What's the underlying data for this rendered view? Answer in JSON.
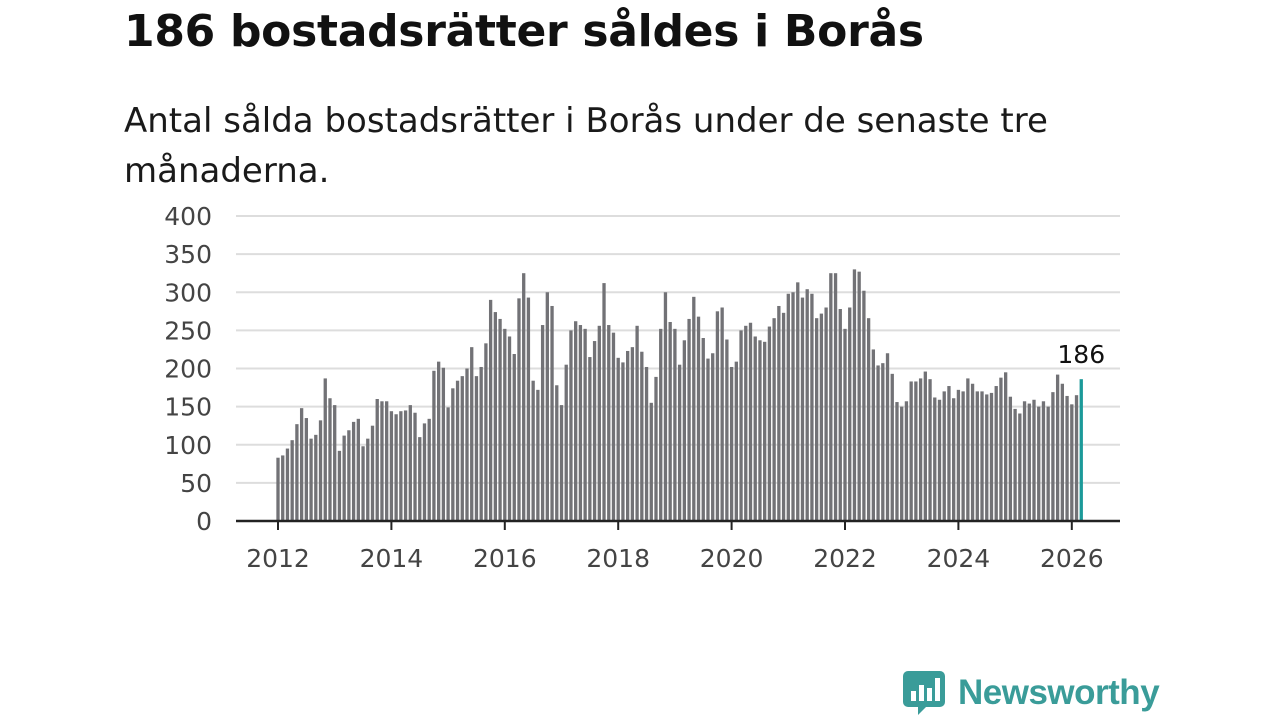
{
  "header": {
    "title": "186 bostadsrätter såldes i Borås",
    "subtitle": "Antal sålda bostadsrätter i Borås under de senaste tre månaderna."
  },
  "brand": {
    "name": "Newsworthy",
    "logo_icon": "bar-chart-speech-bubble-icon",
    "color": "#3a9c99"
  },
  "colors": {
    "bar": "#727276",
    "highlight": "#1b9a99",
    "grid": "#dddddd"
  },
  "chart_data": {
    "type": "bar",
    "title": "186 bostadsrätter såldes i Borås",
    "subtitle": "Antal sålda bostadsrätter i Borås under de senaste tre månaderna.",
    "xlabel": "",
    "ylabel": "",
    "ylim": [
      0,
      400
    ],
    "grid": true,
    "y_ticks": [
      "0",
      "50",
      "100",
      "150",
      "200",
      "250",
      "300",
      "350",
      "400"
    ],
    "x_ticks": [
      "2012",
      "2014",
      "2016",
      "2018",
      "2020",
      "2022",
      "2024",
      "2026"
    ],
    "x_tick_years": [
      2012,
      2014,
      2016,
      2018,
      2020,
      2022,
      2024,
      2026
    ],
    "start_year": 2012,
    "start_month": 1,
    "highlight_label": "186",
    "series": [
      {
        "name": "Antal sålda bostadsrätter",
        "values": [
          83,
          86,
          95,
          106,
          127,
          148,
          135,
          108,
          113,
          132,
          187,
          161,
          152,
          92,
          112,
          119,
          130,
          134,
          98,
          108,
          125,
          160,
          157,
          157,
          144,
          140,
          144,
          145,
          152,
          142,
          110,
          128,
          134,
          197,
          209,
          201,
          149,
          174,
          184,
          190,
          200,
          228,
          190,
          202,
          233,
          290,
          274,
          265,
          252,
          242,
          219,
          292,
          325,
          293,
          184,
          172,
          257,
          300,
          282,
          178,
          152,
          205,
          250,
          262,
          257,
          252,
          215,
          236,
          256,
          312,
          257,
          247,
          214,
          208,
          223,
          228,
          256,
          222,
          202,
          155,
          189,
          252,
          300,
          261,
          252,
          205,
          237,
          265,
          294,
          268,
          240,
          213,
          220,
          275,
          280,
          238,
          202,
          209,
          250,
          256,
          260,
          242,
          237,
          235,
          255,
          266,
          282,
          273,
          298,
          300,
          313,
          293,
          304,
          298,
          266,
          272,
          280,
          325,
          325,
          278,
          252,
          280,
          330,
          327,
          302,
          266,
          225,
          204,
          207,
          220,
          193,
          156,
          150,
          157,
          183,
          183,
          187,
          196,
          186,
          162,
          159,
          170,
          177,
          161,
          172,
          170,
          187,
          180,
          170,
          170,
          166,
          168,
          177,
          188,
          195,
          163,
          147,
          141,
          157,
          154,
          159,
          150,
          157,
          150,
          169,
          192,
          180,
          164,
          153,
          165,
          186
        ]
      }
    ]
  }
}
